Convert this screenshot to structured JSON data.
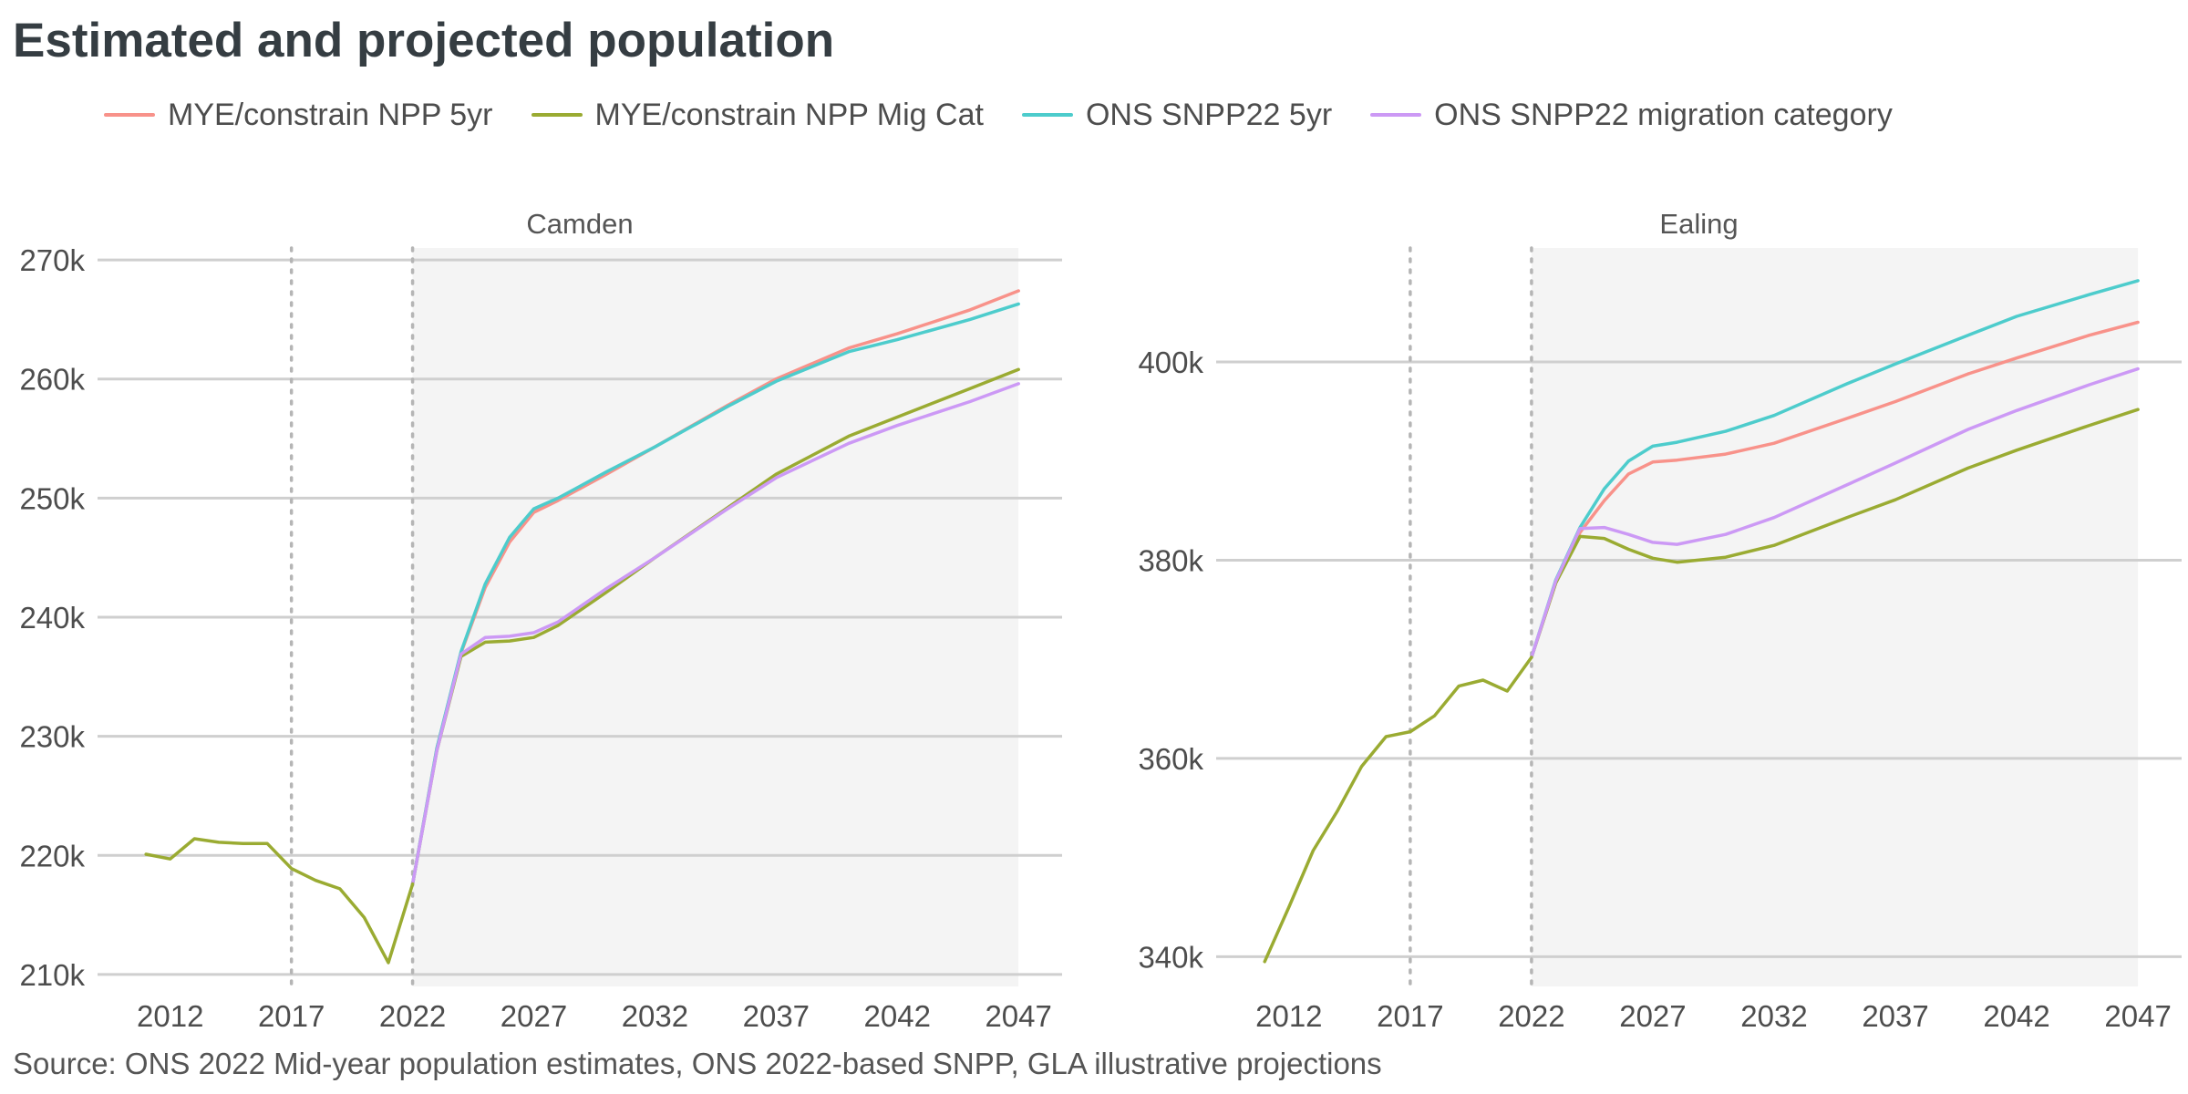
{
  "title": "Estimated and projected population",
  "source": "Source: ONS 2022 Mid-year population estimates, ONS 2022-based SNPP, GLA illustrative projections",
  "legend": [
    {
      "name": "MYE/constrain NPP 5yr",
      "color": "#f8928a"
    },
    {
      "name": "MYE/constrain NPP Mig Cat",
      "color": "#9aab32"
    },
    {
      "name": "ONS SNPP22 5yr",
      "color": "#4dcccc"
    },
    {
      "name": "ONS SNPP22 migration category",
      "color": "#cc99f5"
    }
  ],
  "chart_data": [
    {
      "type": "line",
      "title": "Camden",
      "xlim": [
        2009,
        2048.8
      ],
      "ylim": [
        209000,
        271000
      ],
      "x_ticks": [
        2012,
        2017,
        2022,
        2027,
        2032,
        2037,
        2042,
        2047
      ],
      "y_ticks": [
        210000,
        220000,
        230000,
        240000,
        250000,
        260000,
        270000
      ],
      "y_tick_labels": [
        "210k",
        "220k",
        "230k",
        "240k",
        "250k",
        "260k",
        "270k"
      ],
      "vlines": [
        2017,
        2022
      ],
      "projection_shade": [
        2022,
        2047
      ],
      "historical": {
        "x": [
          2011,
          2012,
          2013,
          2014,
          2015,
          2016,
          2017,
          2018,
          2019,
          2020,
          2021,
          2022
        ],
        "y": [
          220100,
          219700,
          221400,
          221100,
          221000,
          221000,
          218900,
          217900,
          217200,
          214800,
          211000,
          217600
        ]
      },
      "series": [
        {
          "name": "MYE/constrain NPP 5yr",
          "x": [
            2022,
            2023,
            2024,
            2025,
            2026,
            2027,
            2028,
            2030,
            2032,
            2035,
            2037,
            2040,
            2042,
            2045,
            2047
          ],
          "y": [
            217600,
            229000,
            237000,
            242500,
            246300,
            248800,
            249800,
            252000,
            254300,
            257800,
            260000,
            262600,
            263800,
            265800,
            267400
          ]
        },
        {
          "name": "MYE/constrain NPP Mig Cat",
          "x": [
            2022,
            2023,
            2024,
            2025,
            2026,
            2027,
            2028,
            2030,
            2032,
            2035,
            2037,
            2040,
            2042,
            2045,
            2047
          ],
          "y": [
            217600,
            228800,
            236700,
            237900,
            238000,
            238300,
            239300,
            242100,
            245000,
            249200,
            252000,
            255200,
            256800,
            259200,
            260800
          ]
        },
        {
          "name": "ONS SNPP22 5yr",
          "x": [
            2022,
            2023,
            2024,
            2025,
            2026,
            2027,
            2028,
            2030,
            2032,
            2035,
            2037,
            2040,
            2042,
            2045,
            2047
          ],
          "y": [
            217600,
            229000,
            237100,
            242800,
            246700,
            249100,
            250000,
            252200,
            254300,
            257700,
            259800,
            262300,
            263300,
            265000,
            266300
          ]
        },
        {
          "name": "ONS SNPP22 migration category",
          "x": [
            2022,
            2023,
            2024,
            2025,
            2026,
            2027,
            2028,
            2030,
            2032,
            2035,
            2037,
            2040,
            2042,
            2045,
            2047
          ],
          "y": [
            217600,
            228800,
            236900,
            238300,
            238400,
            238700,
            239600,
            242400,
            245000,
            249100,
            251700,
            254600,
            256100,
            258100,
            259600
          ]
        }
      ]
    },
    {
      "type": "line",
      "title": "Ealing",
      "xlim": [
        2009,
        2048.8
      ],
      "ylim": [
        337000,
        411500
      ],
      "x_ticks": [
        2012,
        2017,
        2022,
        2027,
        2032,
        2037,
        2042,
        2047
      ],
      "y_ticks": [
        340000,
        360000,
        380000,
        400000
      ],
      "y_tick_labels": [
        "340k",
        "360k",
        "380k",
        "400k"
      ],
      "vlines": [
        2017,
        2022
      ],
      "projection_shade": [
        2022,
        2047
      ],
      "historical": {
        "x": [
          2011,
          2012,
          2013,
          2014,
          2015,
          2016,
          2017,
          2018,
          2019,
          2020,
          2021,
          2022
        ],
        "y": [
          339500,
          345000,
          350700,
          354700,
          359200,
          362200,
          362700,
          364300,
          367300,
          367900,
          366800,
          370200
        ]
      },
      "series": [
        {
          "name": "MYE/constrain NPP 5yr",
          "x": [
            2022,
            2023,
            2024,
            2025,
            2026,
            2027,
            2028,
            2030,
            2032,
            2035,
            2037,
            2040,
            2042,
            2045,
            2047
          ],
          "y": [
            370200,
            377700,
            382800,
            386000,
            388700,
            389900,
            390100,
            390700,
            391800,
            394300,
            396000,
            398800,
            400400,
            402700,
            404000
          ]
        },
        {
          "name": "MYE/constrain NPP Mig Cat",
          "x": [
            2022,
            2023,
            2024,
            2025,
            2026,
            2027,
            2028,
            2030,
            2032,
            2035,
            2037,
            2040,
            2042,
            2045,
            2047
          ],
          "y": [
            370200,
            377700,
            382400,
            382200,
            381100,
            380200,
            379800,
            380300,
            381500,
            384300,
            386100,
            389300,
            391100,
            393600,
            395200
          ]
        },
        {
          "name": "ONS SNPP22 5yr",
          "x": [
            2022,
            2023,
            2024,
            2025,
            2026,
            2027,
            2028,
            2030,
            2032,
            2035,
            2037,
            2040,
            2042,
            2045,
            2047
          ],
          "y": [
            370200,
            378000,
            383300,
            387200,
            390000,
            391500,
            391900,
            393000,
            394600,
            397800,
            399800,
            402700,
            404600,
            406800,
            408200
          ]
        },
        {
          "name": "ONS SNPP22 migration category",
          "x": [
            2022,
            2023,
            2024,
            2025,
            2026,
            2027,
            2028,
            2030,
            2032,
            2035,
            2037,
            2040,
            2042,
            2045,
            2047
          ],
          "y": [
            370200,
            377900,
            383200,
            383300,
            382600,
            381800,
            381600,
            382600,
            384300,
            387600,
            389800,
            393200,
            395100,
            397700,
            399300
          ]
        }
      ]
    }
  ]
}
